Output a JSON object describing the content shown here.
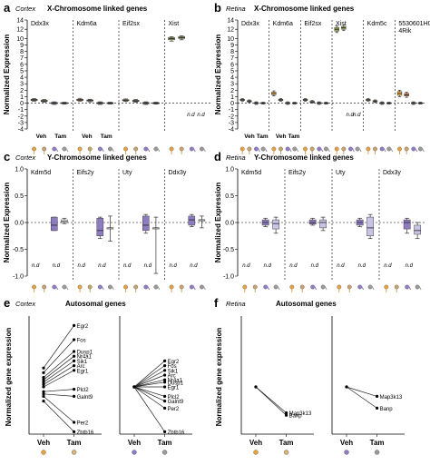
{
  "chart_data": [
    {
      "panel": "a",
      "type": "box",
      "tissue": "Cortex",
      "title": "X-Chromosome linked genes",
      "ylabel": "Normalized Expression",
      "ylim": [
        -4,
        14
      ],
      "yticks": [
        -4,
        -3,
        -2,
        -1,
        0,
        1,
        2,
        3,
        4,
        5,
        6,
        7,
        8,
        9,
        10,
        12,
        14
      ],
      "genes": [
        "Ddx3x",
        "Kdm6a",
        "Eif2sx",
        "Xist"
      ],
      "groups": [
        "Veh",
        "Tam",
        "Veh",
        "Tam"
      ],
      "nd_label": "n.d",
      "nd": [
        [
          3,
          2
        ],
        [
          3,
          3
        ]
      ],
      "boxes": [
        {
          "gene": "Ddx3x",
          "sub": 0,
          "median": 0.5,
          "q1": 0.4,
          "q3": 0.6,
          "min": 0.3,
          "max": 0.7,
          "color": "#e8a33d"
        },
        {
          "gene": "Ddx3x",
          "sub": 1,
          "median": 0.35,
          "q1": 0.25,
          "q3": 0.45,
          "min": 0.15,
          "max": 0.55,
          "color": "#c9a26b"
        },
        {
          "gene": "Ddx3x",
          "sub": 2,
          "median": 0.0,
          "q1": -0.1,
          "q3": 0.1,
          "min": -0.2,
          "max": 0.2,
          "color": "#8e7cc3"
        },
        {
          "gene": "Ddx3x",
          "sub": 3,
          "median": 0.0,
          "q1": -0.08,
          "q3": 0.08,
          "min": -0.15,
          "max": 0.15,
          "color": "#6b6b6b"
        },
        {
          "gene": "Kdm6a",
          "sub": 0,
          "median": 0.5,
          "q1": 0.4,
          "q3": 0.6,
          "min": 0.3,
          "max": 0.75,
          "color": "#e8a33d"
        },
        {
          "gene": "Kdm6a",
          "sub": 1,
          "median": 0.4,
          "q1": 0.3,
          "q3": 0.5,
          "min": 0.2,
          "max": 0.6,
          "color": "#c9a26b"
        },
        {
          "gene": "Kdm6a",
          "sub": 2,
          "median": 0.0,
          "q1": -0.1,
          "q3": 0.1,
          "min": -0.2,
          "max": 0.2,
          "color": "#8e7cc3"
        },
        {
          "gene": "Kdm6a",
          "sub": 3,
          "median": 0.0,
          "q1": -0.08,
          "q3": 0.08,
          "min": -0.15,
          "max": 0.15,
          "color": "#6b6b6b"
        },
        {
          "gene": "Eif2sx",
          "sub": 0,
          "median": 0.45,
          "q1": 0.35,
          "q3": 0.55,
          "min": 0.25,
          "max": 0.65,
          "color": "#e8a33d"
        },
        {
          "gene": "Eif2sx",
          "sub": 1,
          "median": 0.35,
          "q1": 0.25,
          "q3": 0.45,
          "min": 0.15,
          "max": 0.55,
          "color": "#c9a26b"
        },
        {
          "gene": "Eif2sx",
          "sub": 2,
          "median": 0.0,
          "q1": -0.1,
          "q3": 0.1,
          "min": -0.2,
          "max": 0.2,
          "color": "#8e7cc3"
        },
        {
          "gene": "Eif2sx",
          "sub": 3,
          "median": 0.0,
          "q1": -0.08,
          "q3": 0.08,
          "min": -0.15,
          "max": 0.15,
          "color": "#6b6b6b"
        },
        {
          "gene": "Xist",
          "sub": 0,
          "median": 10.0,
          "q1": 9.8,
          "q3": 10.2,
          "min": 9.6,
          "max": 10.4,
          "color": "#8fa34a"
        },
        {
          "gene": "Xist",
          "sub": 1,
          "median": 10.2,
          "q1": 10.0,
          "q3": 10.4,
          "min": 9.8,
          "max": 10.6,
          "color": "#8fa34a"
        }
      ],
      "xlabel_groups": [
        "Veh",
        "Tam"
      ]
    },
    {
      "panel": "b",
      "type": "box",
      "tissue": "Retina",
      "title": "X-Chromosome linked genes",
      "ylabel": "Normalized Expression",
      "ylim": [
        -4,
        14
      ],
      "yticks": [
        -4,
        -3,
        -2,
        -1,
        0,
        1,
        2,
        3,
        4,
        5,
        6,
        7,
        8,
        9,
        10,
        12,
        14
      ],
      "genes": [
        "Ddx3x",
        "Kdm6a",
        "Eif2sx",
        "Xist",
        "Kdm5c",
        "5530601H04Rik"
      ],
      "gene_labels": [
        "Ddx3x",
        "Kdm6a",
        "Eif2sx",
        "Xist",
        "Kdm5c",
        "5530601H0\n4Rik"
      ],
      "nd_label": "n.d",
      "nd": [
        [
          3,
          2
        ],
        [
          3,
          3
        ]
      ],
      "boxes": [
        {
          "gene": "Ddx3x",
          "sub": 0,
          "median": 0.5,
          "q1": 0.4,
          "q3": 0.6,
          "min": 0.3,
          "max": 0.7,
          "color": "#e8a33d"
        },
        {
          "gene": "Ddx3x",
          "sub": 1,
          "median": 0.3,
          "q1": 0.2,
          "q3": 0.4,
          "min": 0.1,
          "max": 0.5,
          "color": "#c9a26b"
        },
        {
          "gene": "Ddx3x",
          "sub": 2,
          "median": 0.0,
          "q1": -0.1,
          "q3": 0.1,
          "min": -0.2,
          "max": 0.2,
          "color": "#8e7cc3"
        },
        {
          "gene": "Ddx3x",
          "sub": 3,
          "median": 0.0,
          "q1": -0.08,
          "q3": 0.08,
          "min": -0.15,
          "max": 0.15,
          "color": "#6b6b6b"
        },
        {
          "gene": "Kdm6a",
          "sub": 0,
          "median": 1.5,
          "q1": 1.3,
          "q3": 1.7,
          "min": 1.1,
          "max": 1.9,
          "color": "#e8a33d"
        },
        {
          "gene": "Kdm6a",
          "sub": 1,
          "median": 0.5,
          "q1": 0.4,
          "q3": 0.6,
          "min": 0.3,
          "max": 0.7,
          "color": "#c9a26b"
        },
        {
          "gene": "Kdm6a",
          "sub": 2,
          "median": 0.0,
          "q1": -0.1,
          "q3": 0.1,
          "min": -0.2,
          "max": 0.2,
          "color": "#8e7cc3"
        },
        {
          "gene": "Kdm6a",
          "sub": 3,
          "median": 0.0,
          "q1": -0.08,
          "q3": 0.08,
          "min": -0.15,
          "max": 0.15,
          "color": "#6b6b6b"
        },
        {
          "gene": "Eif2sx",
          "sub": 0,
          "median": 0.5,
          "q1": 0.4,
          "q3": 0.6,
          "min": 0.3,
          "max": 0.7,
          "color": "#e8a33d"
        },
        {
          "gene": "Eif2sx",
          "sub": 1,
          "median": 0.2,
          "q1": 0.1,
          "q3": 0.3,
          "min": 0.0,
          "max": 0.4,
          "color": "#c9a26b"
        },
        {
          "gene": "Eif2sx",
          "sub": 2,
          "median": 0.0,
          "q1": -0.1,
          "q3": 0.1,
          "min": -0.2,
          "max": 0.2,
          "color": "#8e7cc3"
        },
        {
          "gene": "Eif2sx",
          "sub": 3,
          "median": 0.0,
          "q1": -0.08,
          "q3": 0.08,
          "min": -0.15,
          "max": 0.15,
          "color": "#6b6b6b"
        },
        {
          "gene": "Xist",
          "sub": 0,
          "median": 12.0,
          "q1": 11.6,
          "q3": 12.4,
          "min": 11.3,
          "max": 12.7,
          "color": "#8fa34a"
        },
        {
          "gene": "Xist",
          "sub": 1,
          "median": 12.3,
          "q1": 12.0,
          "q3": 12.6,
          "min": 11.7,
          "max": 12.9,
          "color": "#8fa34a"
        },
        {
          "gene": "Kdm5c",
          "sub": 0,
          "median": 0.5,
          "q1": 0.4,
          "q3": 0.6,
          "min": 0.3,
          "max": 0.7,
          "color": "#e8a33d"
        },
        {
          "gene": "Kdm5c",
          "sub": 1,
          "median": 0.3,
          "q1": 0.2,
          "q3": 0.4,
          "min": 0.1,
          "max": 0.5,
          "color": "#c9a26b"
        },
        {
          "gene": "Kdm5c",
          "sub": 2,
          "median": 0.0,
          "q1": -0.1,
          "q3": 0.1,
          "min": -0.2,
          "max": 0.2,
          "color": "#8e7cc3"
        },
        {
          "gene": "Kdm5c",
          "sub": 3,
          "median": 0.0,
          "q1": -0.08,
          "q3": 0.08,
          "min": -0.15,
          "max": 0.15,
          "color": "#6b6b6b"
        },
        {
          "gene": "5530601H04Rik",
          "sub": 0,
          "median": 1.5,
          "q1": 1.2,
          "q3": 1.8,
          "min": 1.0,
          "max": 2.0,
          "color": "#e8a33d"
        },
        {
          "gene": "5530601H04Rik",
          "sub": 1,
          "median": 1.3,
          "q1": 1.1,
          "q3": 1.5,
          "min": 0.9,
          "max": 1.7,
          "color": "#d9724b"
        },
        {
          "gene": "5530601H04Rik",
          "sub": 2,
          "median": 0.0,
          "q1": -0.1,
          "q3": 0.1,
          "min": -0.2,
          "max": 0.2,
          "color": "#8e7cc3"
        },
        {
          "gene": "5530601H04Rik",
          "sub": 3,
          "median": 0.0,
          "q1": -0.08,
          "q3": 0.08,
          "min": -0.15,
          "max": 0.15,
          "color": "#6b6b6b"
        }
      ]
    },
    {
      "panel": "c",
      "type": "box",
      "tissue": "Cortex",
      "title": "Y-Chromosome linked genes",
      "ylabel": "Normalized Expression",
      "ylim": [
        -1.0,
        1.0
      ],
      "yticks": [
        -1.0,
        -0.5,
        0.0,
        0.5,
        1.0
      ],
      "yticklabels": [
        "-1.0",
        "-0.5",
        "0.0",
        "0.5",
        "1.0"
      ],
      "genes": [
        "Kdm5d",
        "Eifs2y",
        "Uty",
        "Ddx3y"
      ],
      "nd_label": "n.d",
      "boxes": [
        {
          "gene": "Kdm5d",
          "sub": 2,
          "median": -0.05,
          "q1": -0.15,
          "q3": 0.1,
          "min": -0.15,
          "max": 0.1,
          "color": "#8e7cc3"
        },
        {
          "gene": "Kdm5d",
          "sub": 3,
          "median": 0.02,
          "q1": 0.0,
          "q3": 0.05,
          "min": -0.02,
          "max": 0.08,
          "color": "#ffffff"
        },
        {
          "gene": "Eifs2y",
          "sub": 2,
          "median": -0.15,
          "q1": -0.25,
          "q3": 0.08,
          "min": -0.3,
          "max": 0.1,
          "color": "#8e7cc3"
        },
        {
          "gene": "Eifs2y",
          "sub": 3,
          "median": -0.1,
          "q1": -0.1,
          "q3": -0.1,
          "min": -0.35,
          "max": 0.12,
          "color": "#ffffff"
        },
        {
          "gene": "Uty",
          "sub": 2,
          "median": -0.05,
          "q1": -0.15,
          "q3": 0.12,
          "min": -0.2,
          "max": 0.15,
          "color": "#8e7cc3"
        },
        {
          "gene": "Uty",
          "sub": 3,
          "median": -0.1,
          "q1": -0.1,
          "q3": -0.1,
          "min": -0.95,
          "max": 0.1,
          "color": "#ffffff"
        },
        {
          "gene": "Ddx3y",
          "sub": 2,
          "median": 0.05,
          "q1": -0.05,
          "q3": 0.12,
          "min": -0.08,
          "max": 0.15,
          "color": "#8e7cc3"
        },
        {
          "gene": "Ddx3y",
          "sub": 3,
          "median": 0.05,
          "q1": 0.05,
          "q3": 0.05,
          "min": -0.1,
          "max": 0.12,
          "color": "#ffffff"
        }
      ],
      "nd": [
        [
          0,
          0
        ],
        [
          0,
          1
        ],
        [
          1,
          0
        ],
        [
          1,
          1
        ],
        [
          2,
          0
        ],
        [
          2,
          1
        ],
        [
          3,
          0
        ],
        [
          3,
          1
        ]
      ]
    },
    {
      "panel": "d",
      "type": "box",
      "tissue": "Retina",
      "title": "Y-Chromosome linked genes",
      "ylabel": "Normalized Expression",
      "ylim": [
        -1.0,
        1.0
      ],
      "yticks": [
        -1.0,
        -0.5,
        0.0,
        0.5,
        1.0
      ],
      "yticklabels": [
        "-1.0",
        "-0.5",
        "0.0",
        "0.5",
        "1.0"
      ],
      "genes": [
        "Kdm5d",
        "Eifs2y",
        "Uty",
        "Ddx3y"
      ],
      "nd_label": "n.d",
      "boxes": [
        {
          "gene": "Kdm5d",
          "sub": 2,
          "median": 0.0,
          "q1": -0.05,
          "q3": 0.05,
          "min": -0.08,
          "max": 0.08,
          "color": "#8e7cc3"
        },
        {
          "gene": "Kdm5d",
          "sub": 3,
          "median": -0.02,
          "q1": -0.12,
          "q3": 0.05,
          "min": -0.2,
          "max": 0.1,
          "color": "#c9c3e6"
        },
        {
          "gene": "Eifs2y",
          "sub": 2,
          "median": 0.0,
          "q1": -0.03,
          "q3": 0.05,
          "min": -0.05,
          "max": 0.08,
          "color": "#8e7cc3"
        },
        {
          "gene": "Eifs2y",
          "sub": 3,
          "median": 0.0,
          "q1": -0.1,
          "q3": 0.05,
          "min": -0.15,
          "max": 0.1,
          "color": "#c9c3e6"
        },
        {
          "gene": "Uty",
          "sub": 2,
          "median": 0.0,
          "q1": -0.05,
          "q3": 0.05,
          "min": -0.08,
          "max": 0.08,
          "color": "#8e7cc3"
        },
        {
          "gene": "Uty",
          "sub": 3,
          "median": -0.1,
          "q1": -0.25,
          "q3": 0.1,
          "min": -0.3,
          "max": 0.15,
          "color": "#c9c3e6"
        },
        {
          "gene": "Ddx3y",
          "sub": 2,
          "median": 0.0,
          "q1": -0.12,
          "q3": 0.05,
          "min": -0.2,
          "max": 0.08,
          "color": "#8e7cc3"
        },
        {
          "gene": "Ddx3y",
          "sub": 3,
          "median": -0.15,
          "q1": -0.22,
          "q3": -0.05,
          "min": -0.3,
          "max": 0.0,
          "color": "#c9c3e6"
        }
      ],
      "nd": [
        [
          0,
          0
        ],
        [
          0,
          1
        ],
        [
          1,
          0
        ],
        [
          1,
          1
        ],
        [
          2,
          0
        ],
        [
          2,
          1
        ],
        [
          3,
          0
        ],
        [
          3,
          1
        ]
      ]
    },
    {
      "panel": "e",
      "type": "line",
      "tissue": "Cortex",
      "title": "Autosomal genes",
      "ylabel": "Normalized gene expression",
      "ylim": [
        -1.0,
        1.5
      ],
      "categories": [
        "Veh",
        "Tam"
      ],
      "left": {
        "series": [
          {
            "name": "Egr2",
            "values": [
              0.4,
              1.3
            ]
          },
          {
            "name": "Fos",
            "values": [
              0.3,
              1.0
            ]
          },
          {
            "name": "Dusp1",
            "values": [
              0.2,
              0.75
            ]
          },
          {
            "name": "Nr4a1",
            "values": [
              0.15,
              0.65
            ]
          },
          {
            "name": "Sik1",
            "values": [
              0.1,
              0.55
            ]
          },
          {
            "name": "Arc",
            "values": [
              0.05,
              0.45
            ]
          },
          {
            "name": "Egr1",
            "values": [
              0.0,
              0.35
            ]
          },
          {
            "name": "Plcl2",
            "values": [
              -0.1,
              -0.05
            ]
          },
          {
            "name": "Galnt9",
            "values": [
              -0.15,
              -0.2
            ]
          },
          {
            "name": "Per2",
            "values": [
              -0.2,
              -0.75
            ]
          },
          {
            "name": "Zbtb16",
            "values": [
              -0.3,
              -0.95
            ]
          }
        ]
      },
      "right": {
        "series": [
          {
            "name": "Egr2",
            "values": [
              0.0,
              0.55
            ]
          },
          {
            "name": "Fos",
            "values": [
              0.0,
              0.45
            ]
          },
          {
            "name": "Sik1",
            "values": [
              0.0,
              0.35
            ]
          },
          {
            "name": "Arc",
            "values": [
              0.0,
              0.25
            ]
          },
          {
            "name": "Nr4a1",
            "values": [
              0.0,
              0.15
            ]
          },
          {
            "name": "Dusp1",
            "values": [
              0.0,
              0.1
            ]
          },
          {
            "name": "Egr1",
            "values": [
              0.0,
              0.0
            ]
          },
          {
            "name": "Plcl2",
            "values": [
              0.0,
              -0.2
            ]
          },
          {
            "name": "Galnt9",
            "values": [
              0.0,
              -0.3
            ]
          },
          {
            "name": "Per2",
            "values": [
              0.0,
              -0.45
            ]
          },
          {
            "name": "Zbtb16",
            "values": [
              0.0,
              -0.95
            ]
          }
        ]
      }
    },
    {
      "panel": "f",
      "type": "line",
      "tissue": "Retina",
      "title": "Autosomal genes",
      "ylabel": "Normalized gene expression",
      "ylim": [
        -1.0,
        1.5
      ],
      "categories": [
        "Veh",
        "Tam"
      ],
      "left": {
        "series": [
          {
            "name": "Map3k13",
            "values": [
              0.0,
              -0.55
            ]
          },
          {
            "name": "Banp",
            "values": [
              0.0,
              -0.6
            ]
          }
        ]
      },
      "right": {
        "series": [
          {
            "name": "Map3k13",
            "values": [
              0.0,
              -0.2
            ]
          },
          {
            "name": "Banp",
            "values": [
              0.0,
              -0.45
            ]
          }
        ]
      }
    }
  ]
}
